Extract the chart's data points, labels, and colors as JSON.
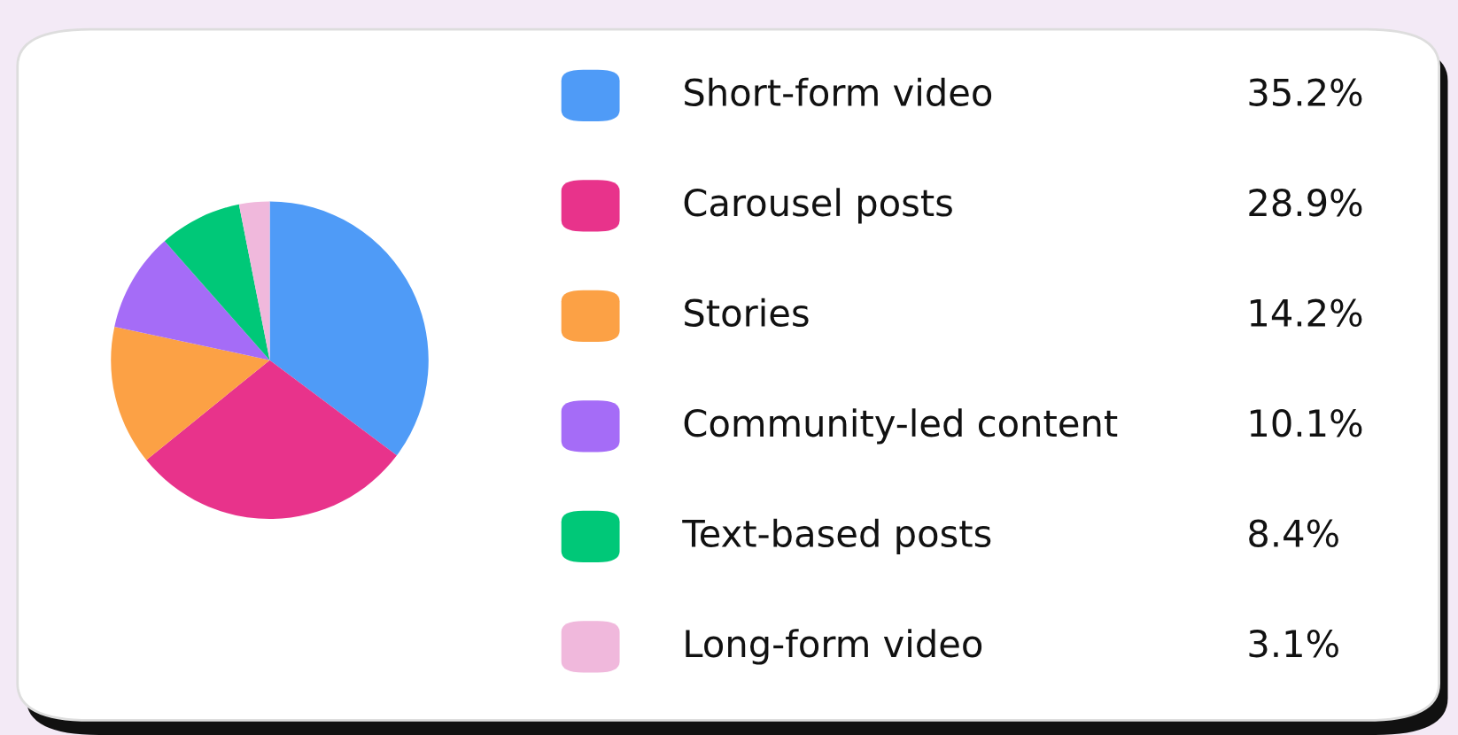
{
  "chart_data": {
    "type": "pie",
    "categories": [
      "Short-form video",
      "Carousel posts",
      "Stories",
      "Community-led content",
      "Text-based posts",
      "Long-form video"
    ],
    "values": [
      35.2,
      28.9,
      14.2,
      10.1,
      8.4,
      3.1
    ],
    "colors": [
      "#4f9bf7",
      "#e8338b",
      "#fca145",
      "#a56cf7",
      "#00c878",
      "#f0b8dc"
    ],
    "value_labels": [
      "35.2%",
      "28.9%",
      "14.2%",
      "10.1%",
      "8.4%",
      "3.1%"
    ],
    "legend": "right"
  }
}
